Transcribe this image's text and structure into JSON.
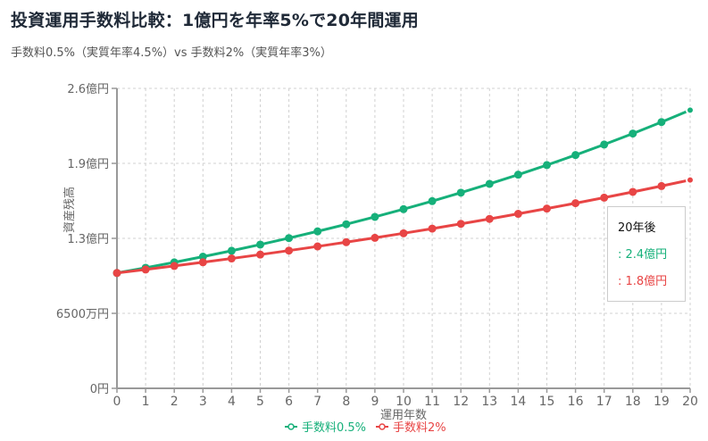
{
  "header": {
    "title": "投資運用手数料比較：1億円を年率5%で20年間運用",
    "subtitle": "手数料0.5%（実質年率4.5%）vs 手数料2%（実質年率3%）"
  },
  "tooltip": {
    "title": "20年後",
    "rows": [
      {
        "label": ": 2.4億円",
        "color": "#16b07a"
      },
      {
        "label": ": 1.8億円",
        "color": "#e84545"
      }
    ]
  },
  "legend": [
    {
      "label": "手数料0.5%",
      "color": "#16b07a"
    },
    {
      "label": "手数料2%",
      "color": "#e84545"
    }
  ],
  "chart_data": {
    "type": "line",
    "title": "投資運用手数料比較：1億円を年率5%で20年間運用",
    "subtitle": "手数料0.5%（実質年率4.5%）vs 手数料2%（実質年率3%）",
    "xlabel": "運用年数",
    "ylabel": "資産残高",
    "x": [
      0,
      1,
      2,
      3,
      4,
      5,
      6,
      7,
      8,
      9,
      10,
      11,
      12,
      13,
      14,
      15,
      16,
      17,
      18,
      19,
      20
    ],
    "ylim": [
      0,
      260000000
    ],
    "yticks": [
      0,
      65000000,
      130000000,
      195000000,
      260000000
    ],
    "ytick_labels": [
      "0円",
      "6500万円",
      "1.3億円",
      "1.9億円",
      "2.6億円"
    ],
    "grid": true,
    "legend_position": "bottom",
    "series": [
      {
        "name": "手数料0.5%",
        "color": "#16b07a",
        "values": [
          100000000,
          104500000,
          109202500,
          114116613,
          119251860,
          124618194,
          130226012,
          136086183,
          142210061,
          148609514,
          155296942,
          162285305,
          169588143,
          177219610,
          185194492,
          193528244,
          202237015,
          211337681,
          220847877,
          230786031,
          241171403
        ]
      },
      {
        "name": "手数料2%",
        "color": "#e84545",
        "values": [
          100000000,
          103000000,
          106090000,
          109272700,
          112550881,
          115927407,
          119405230,
          122987387,
          126677008,
          130477318,
          134391638,
          138423387,
          142576089,
          146853371,
          151258972,
          155796742,
          160470644,
          165284763,
          170243306,
          175350605,
          180611123
        ]
      }
    ],
    "annotations": [
      {
        "type": "tooltip",
        "x": 20,
        "text": [
          "20年後",
          ": 2.4億円",
          ": 1.8億円"
        ]
      }
    ]
  }
}
